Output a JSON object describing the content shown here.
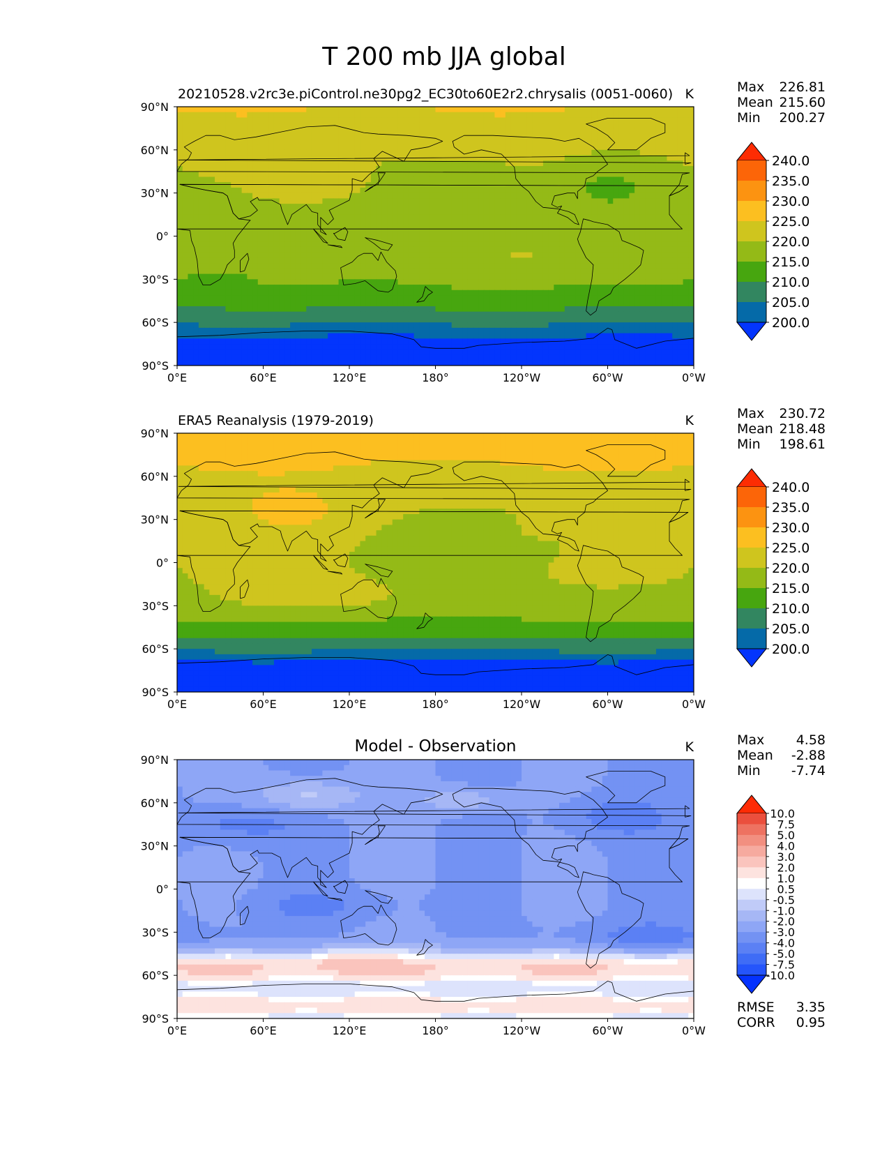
{
  "figure_title": "T 200 mb JJA global",
  "colors": {
    "abs_levels": [
      "#0335fd",
      "#056aa8",
      "#328660",
      "#47a60f",
      "#94ba17",
      "#cfc51e",
      "#fcbf20",
      "#fc9311",
      "#fc6508",
      "#fd2c03"
    ],
    "diff_levels": [
      "#0432fe",
      "#2555fb",
      "#3f6cf6",
      "#5b80f4",
      "#7392f3",
      "#8ea6f6",
      "#a6b7f5",
      "#c0cbf8",
      "#dde3fc",
      "#ffffff",
      "#fde3df",
      "#fac4bd",
      "#f6aa9f",
      "#f28f80",
      "#ee7261",
      "#eb4f3d",
      "#fe2b05"
    ],
    "land_outline": "#000000"
  },
  "chart_data": [
    {
      "type": "heatmap",
      "panel": "test",
      "title_left": "20210528.v2rc3e.piControl.ne30pg2_EC30to60E2r2.chrysalis (0051-0060)",
      "title_center": "",
      "units": "K",
      "stats": {
        "Max": "226.81",
        "Mean": "215.60",
        "Min": "200.27"
      },
      "colorbar_levels": [
        "200.0",
        "205.0",
        "210.0",
        "215.0",
        "220.0",
        "225.0",
        "230.0",
        "235.0",
        "240.0"
      ],
      "colorbar_type": "abs",
      "xticks": [
        "0°E",
        "60°E",
        "120°E",
        "180°",
        "120°W",
        "60°W",
        "0°W"
      ],
      "yticks": [
        "90°N",
        "60°N",
        "30°N",
        "0°",
        "30°S",
        "60°S",
        "90°S"
      ],
      "field": "model"
    },
    {
      "type": "heatmap",
      "panel": "reference",
      "title_left": "ERA5 Reanalysis (1979-2019)",
      "title_center": "",
      "units": "K",
      "stats": {
        "Max": "230.72",
        "Mean": "218.48",
        "Min": "198.61"
      },
      "colorbar_levels": [
        "200.0",
        "205.0",
        "210.0",
        "215.0",
        "220.0",
        "225.0",
        "230.0",
        "235.0",
        "240.0"
      ],
      "colorbar_type": "abs",
      "xticks": [
        "0°E",
        "60°E",
        "120°E",
        "180°",
        "120°W",
        "60°W",
        "0°W"
      ],
      "yticks": [
        "90°N",
        "60°N",
        "30°N",
        "0°",
        "30°S",
        "60°S",
        "90°S"
      ],
      "field": "obs"
    },
    {
      "type": "heatmap",
      "panel": "difference",
      "title_left": "",
      "title_center": "Model - Observation",
      "units": "K",
      "stats": {
        "Max": "4.58",
        "Mean": "-2.88",
        "Min": "-7.74"
      },
      "colorbar_levels": [
        "-10.0",
        "-7.5",
        "-5.0",
        "-4.0",
        "-3.0",
        "-2.0",
        "-1.0",
        "-0.5",
        "0.5",
        "1.0",
        "2.0",
        "3.0",
        "4.0",
        "5.0",
        "7.5",
        "10.0"
      ],
      "colorbar_type": "diff",
      "xticks": [
        "0°E",
        "60°E",
        "120°E",
        "180°",
        "120°W",
        "60°W",
        "0°W"
      ],
      "yticks": [
        "90°N",
        "60°N",
        "30°N",
        "0°",
        "30°S",
        "60°S",
        "90°S"
      ],
      "field": "diff",
      "extra_stats": {
        "RMSE": "3.35",
        "CORR": "0.95"
      }
    }
  ]
}
